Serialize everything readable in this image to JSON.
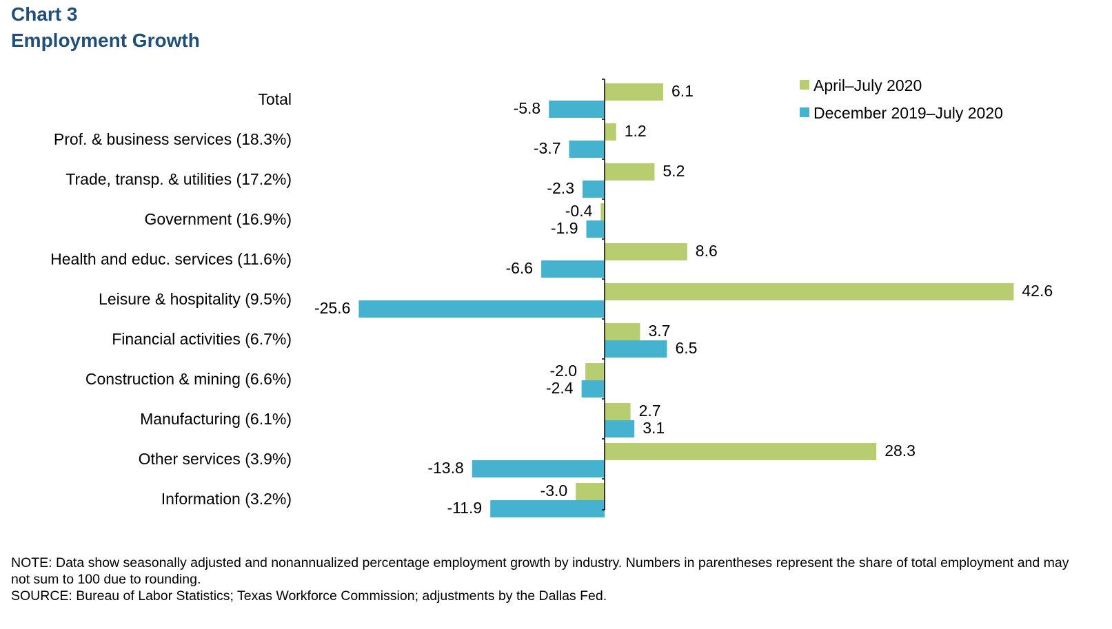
{
  "title": {
    "line1": "Chart 3",
    "line2": "Employment  Growth"
  },
  "colors": {
    "series1": "#b8cd6f",
    "series2": "#45b3cf",
    "title": "#1f4e79",
    "axis": "#000000"
  },
  "chart_data": {
    "type": "bar",
    "orientation": "horizontal",
    "categories": [
      "Total",
      "Prof. & business services (18.3%)",
      "Trade, transp. & utilities (17.2%)",
      "Government (16.9%)",
      "Health and educ. services (11.6%)",
      "Leisure & hospitality (9.5%)",
      "Financial activities (6.7%)",
      "Construction & mining (6.6%)",
      "Manufacturing (6.1%)",
      "Other services (3.9%)",
      "Information (3.2%)"
    ],
    "series": [
      {
        "name": "April–July 2020",
        "values": [
          6.1,
          1.2,
          5.2,
          -0.4,
          8.6,
          42.6,
          3.7,
          -2.0,
          2.7,
          28.3,
          -3.0
        ],
        "labels": [
          "6.1",
          "1.2",
          "5.2",
          "-0.4",
          "8.6",
          "42.6",
          "3.7",
          "-2.0",
          "2.7",
          "28.3",
          "-3.0"
        ]
      },
      {
        "name": "December 2019–July 2020",
        "values": [
          -5.8,
          -3.7,
          -2.3,
          -1.9,
          -6.6,
          -25.6,
          6.5,
          -2.4,
          3.1,
          -13.8,
          -11.9
        ],
        "labels": [
          "-5.8",
          "-3.7",
          "-2.3",
          "-1.9",
          "-6.6",
          "-25.6",
          "6.5",
          "-2.4",
          "3.1",
          "-13.8",
          "-11.9"
        ]
      }
    ],
    "xlim": [
      -25.6,
      42.6
    ],
    "grid": false,
    "legend": "top-right"
  },
  "notes": {
    "note": "NOTE: Data show seasonally adjusted and nonannualized  percentage employment growth by industry. Numbers in parentheses represent the share of total employment and may not sum to 100 due to rounding.",
    "source": "SOURCE: Bureau of Labor Statistics; Texas Workforce Commission; adjustments  by the Dallas Fed."
  }
}
